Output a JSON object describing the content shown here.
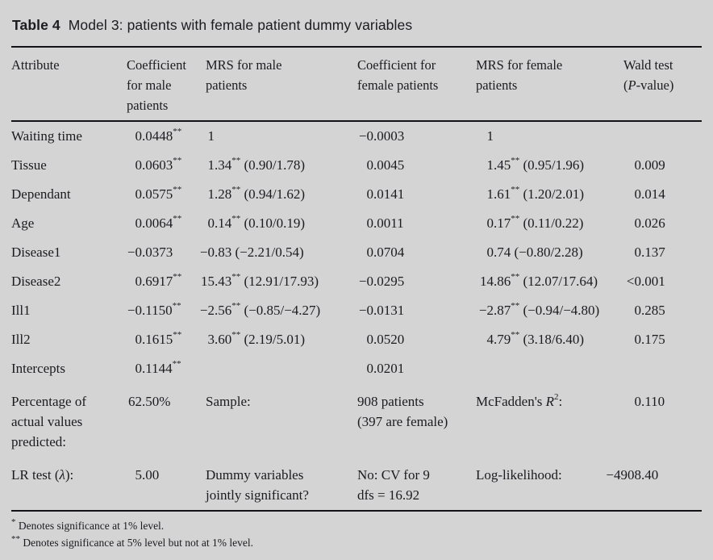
{
  "page": {
    "background": "#d4d4d5",
    "text_color": "#1b1b20",
    "rule_color": "#131317"
  },
  "title": {
    "label": "Table 4",
    "text": "Model 3: patients with female patient dummy variables"
  },
  "table": {
    "column_headers": [
      "Attribute",
      "Coefficient\nfor male\npatients",
      "MRS for male\npatients",
      "Coefficient for\nfemale patients",
      "MRS for female\npatients",
      "Wald test\n(P-value)"
    ],
    "rows": [
      [
        "Waiting time",
        "0.0448**",
        "1",
        "−0.0003",
        "1",
        ""
      ],
      [
        "Tissue",
        "0.0603**",
        "1.34** (0.90/1.78)",
        "0.0045",
        "1.45** (0.95/1.96)",
        "0.009"
      ],
      [
        "Dependant",
        "0.0575**",
        "1.28** (0.94/1.62)",
        "0.0141",
        "1.61** (1.20/2.01)",
        "0.014"
      ],
      [
        "Age",
        "0.0064**",
        "0.14** (0.10/0.19)",
        "0.0011",
        "0.17** (0.11/0.22)",
        "0.026"
      ],
      [
        "Disease1",
        "−0.0373",
        "−0.83 (−2.21/0.54)",
        "0.0704",
        "0.74 (−0.80/2.28)",
        "0.137"
      ],
      [
        "Disease2",
        "0.6917**",
        "15.43** (12.91/17.93)",
        "−0.0295",
        "14.86** (12.07/17.64)",
        "<0.001"
      ],
      [
        "Ill1",
        "−0.1150**",
        "−2.56** (−0.85/−4.27)",
        "−0.0131",
        "−2.87** (−0.94/−4.80)",
        "0.285"
      ],
      [
        "Ill2",
        "0.1615**",
        "3.60** (2.19/5.01)",
        "0.0520",
        "4.79** (3.18/6.40)",
        "0.175"
      ],
      [
        "Intercepts",
        "0.1144**",
        "",
        "0.0201",
        "",
        ""
      ],
      [
        "Percentage of\nactual values\npredicted:",
        "62.50%",
        "Sample:",
        "908 patients\n(397 are female)",
        "McFadden's R²:",
        "0.110"
      ],
      [
        "LR test (λ):",
        "5.00",
        "Dummy variables\njointly significant?",
        "No: CV for 9\ndfs = 16.92",
        "Log-likelihood:",
        "−4908.40"
      ]
    ],
    "footnotes": [
      "* Denotes significance at 1% level.",
      "** Denotes significance at 5% level but not at 1% level."
    ]
  }
}
